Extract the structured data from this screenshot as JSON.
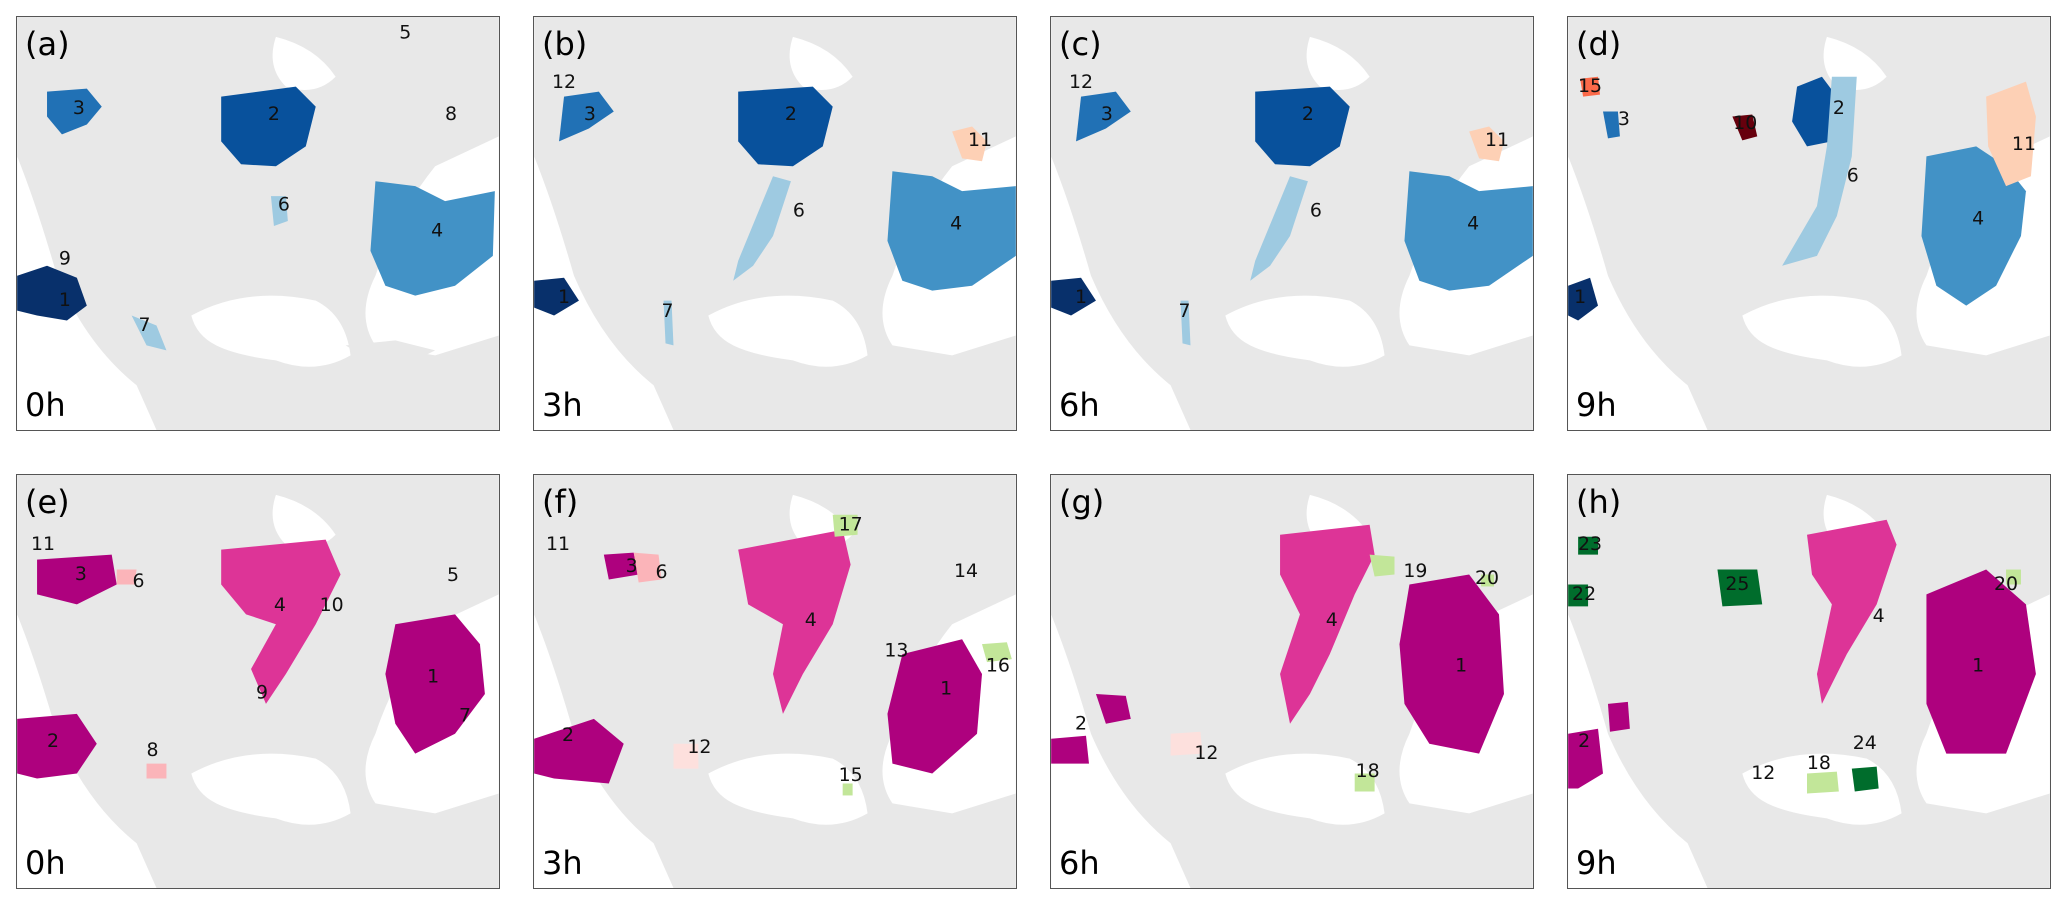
{
  "colors": {
    "land": "#e8e8e8",
    "water": "#ffffff",
    "blues": [
      "#08306b",
      "#08519c",
      "#2171b5",
      "#4292c6",
      "#6baed6",
      "#9ecae1",
      "#c6dbef"
    ],
    "reds": [
      "#fdd0b5",
      "#fb6a4a",
      "#cb181d",
      "#67000d"
    ],
    "pinks": [
      "#ae017e",
      "#dd3497",
      "#f768a1",
      "#fbb4b9",
      "#fde0dd"
    ],
    "greens": [
      "#006d2c",
      "#78c679",
      "#c2e699",
      "#a1d99b"
    ]
  },
  "panels": [
    {
      "label": "(a)",
      "time": "0h",
      "numbers": [
        "3",
        "2",
        "5",
        "8",
        "6",
        "4",
        "9",
        "1",
        "7"
      ]
    },
    {
      "label": "(b)",
      "time": "3h",
      "numbers": [
        "12",
        "3",
        "2",
        "11",
        "6",
        "4",
        "1",
        "7"
      ]
    },
    {
      "label": "(c)",
      "time": "6h",
      "numbers": [
        "12",
        "3",
        "2",
        "11",
        "6",
        "4",
        "1",
        "7"
      ]
    },
    {
      "label": "(d)",
      "time": "9h",
      "numbers": [
        "15",
        "3",
        "10",
        "2",
        "6",
        "11",
        "4",
        "1"
      ]
    },
    {
      "label": "(e)",
      "time": "0h",
      "numbers": [
        "11",
        "3",
        "6",
        "4",
        "10",
        "5",
        "9",
        "1",
        "7",
        "2",
        "8"
      ]
    },
    {
      "label": "(f)",
      "time": "3h",
      "numbers": [
        "11",
        "3",
        "6",
        "17",
        "14",
        "4",
        "13",
        "16",
        "1",
        "2",
        "12",
        "15"
      ]
    },
    {
      "label": "(g)",
      "time": "6h",
      "numbers": [
        "4",
        "19",
        "20",
        "1",
        "2",
        "12",
        "18"
      ]
    },
    {
      "label": "(h)",
      "time": "9h",
      "numbers": [
        "23",
        "22",
        "25",
        "4",
        "20",
        "1",
        "2",
        "12",
        "18",
        "24"
      ]
    }
  ]
}
